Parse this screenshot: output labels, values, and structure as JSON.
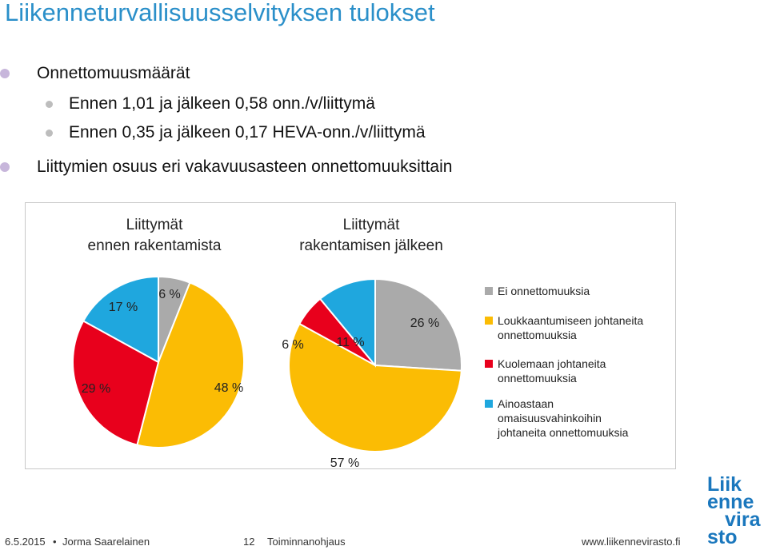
{
  "slide": {
    "title": "Liikenneturvallisuusselvityksen tulokset",
    "bullets": {
      "b1": "Onnettomuusmäärät",
      "b1_sub1": "Ennen 1,01 ja jälkeen 0,58 onn./v/liittymä",
      "b1_sub2": "Ennen 0,35 ja jälkeen 0,17 HEVA-onn./v/liittymä",
      "b2": "Liittymien osuus eri vakavuusasteen onnettomuuksittain"
    }
  },
  "chart_data": [
    {
      "type": "pie",
      "title": [
        "Liittymät",
        "ennen rakentamista"
      ],
      "slices": [
        {
          "name": "Ei onnettomuuksia",
          "value": 6,
          "label": "6 %",
          "color": "#aaaaaa"
        },
        {
          "name": "Loukkaantumiseen johtaneita onnettomuuksia",
          "value": 48,
          "label": "48 %",
          "color": "#fbbc04"
        },
        {
          "name": "Kuolemaan johtaneita onnettomuuksia",
          "value": 29,
          "label": "29 %",
          "color": "#e8001c"
        },
        {
          "name": "Ainoastaan omaisuusvahinkoihin johtaneita onnettomuuksia",
          "value": 17,
          "label": "17 %",
          "color": "#1fa7de"
        }
      ]
    },
    {
      "type": "pie",
      "title": [
        "Liittymät",
        "rakentamisen jälkeen"
      ],
      "slices": [
        {
          "name": "Ei onnettomuuksia",
          "value": 26,
          "label": "26 %",
          "color": "#aaaaaa"
        },
        {
          "name": "Loukkaantumiseen johtaneita onnettomuuksia",
          "value": 57,
          "label": "57 %",
          "color": "#fbbc04"
        },
        {
          "name": "Kuolemaan johtaneita onnettomuuksia",
          "value": 6,
          "label": "6 %",
          "color": "#e8001c"
        },
        {
          "name": "Ainoastaan omaisuusvahinkoihin johtaneita onnettomuuksia",
          "value": 11,
          "label": "11 %",
          "color": "#1fa7de"
        }
      ]
    }
  ],
  "legend": {
    "placement": "right",
    "items": [
      {
        "lines": [
          "Ei onnettomuuksia"
        ],
        "color": "#aaaaaa"
      },
      {
        "lines": [
          "Loukkaantumiseen johtaneita",
          "onnettomuuksia"
        ],
        "color": "#fbbc04"
      },
      {
        "lines": [
          "Kuolemaan johtaneita",
          "onnettomuuksia"
        ],
        "color": "#e8001c"
      },
      {
        "lines": [
          "Ainoastaan",
          "omaisuusvahinkoihin",
          "johtaneita onnettomuuksia"
        ],
        "color": "#1fa7de"
      }
    ]
  },
  "footer": {
    "date": "6.5.2015",
    "separator": "•",
    "author": "Jorma Saarelainen",
    "page": "12",
    "department": "Toiminnanohjaus",
    "website": "www.liikennevirasto.fi"
  },
  "logo": {
    "lines": [
      "Liik",
      "enne",
      "vira",
      "sto"
    ],
    "color": "#1a77bd"
  }
}
